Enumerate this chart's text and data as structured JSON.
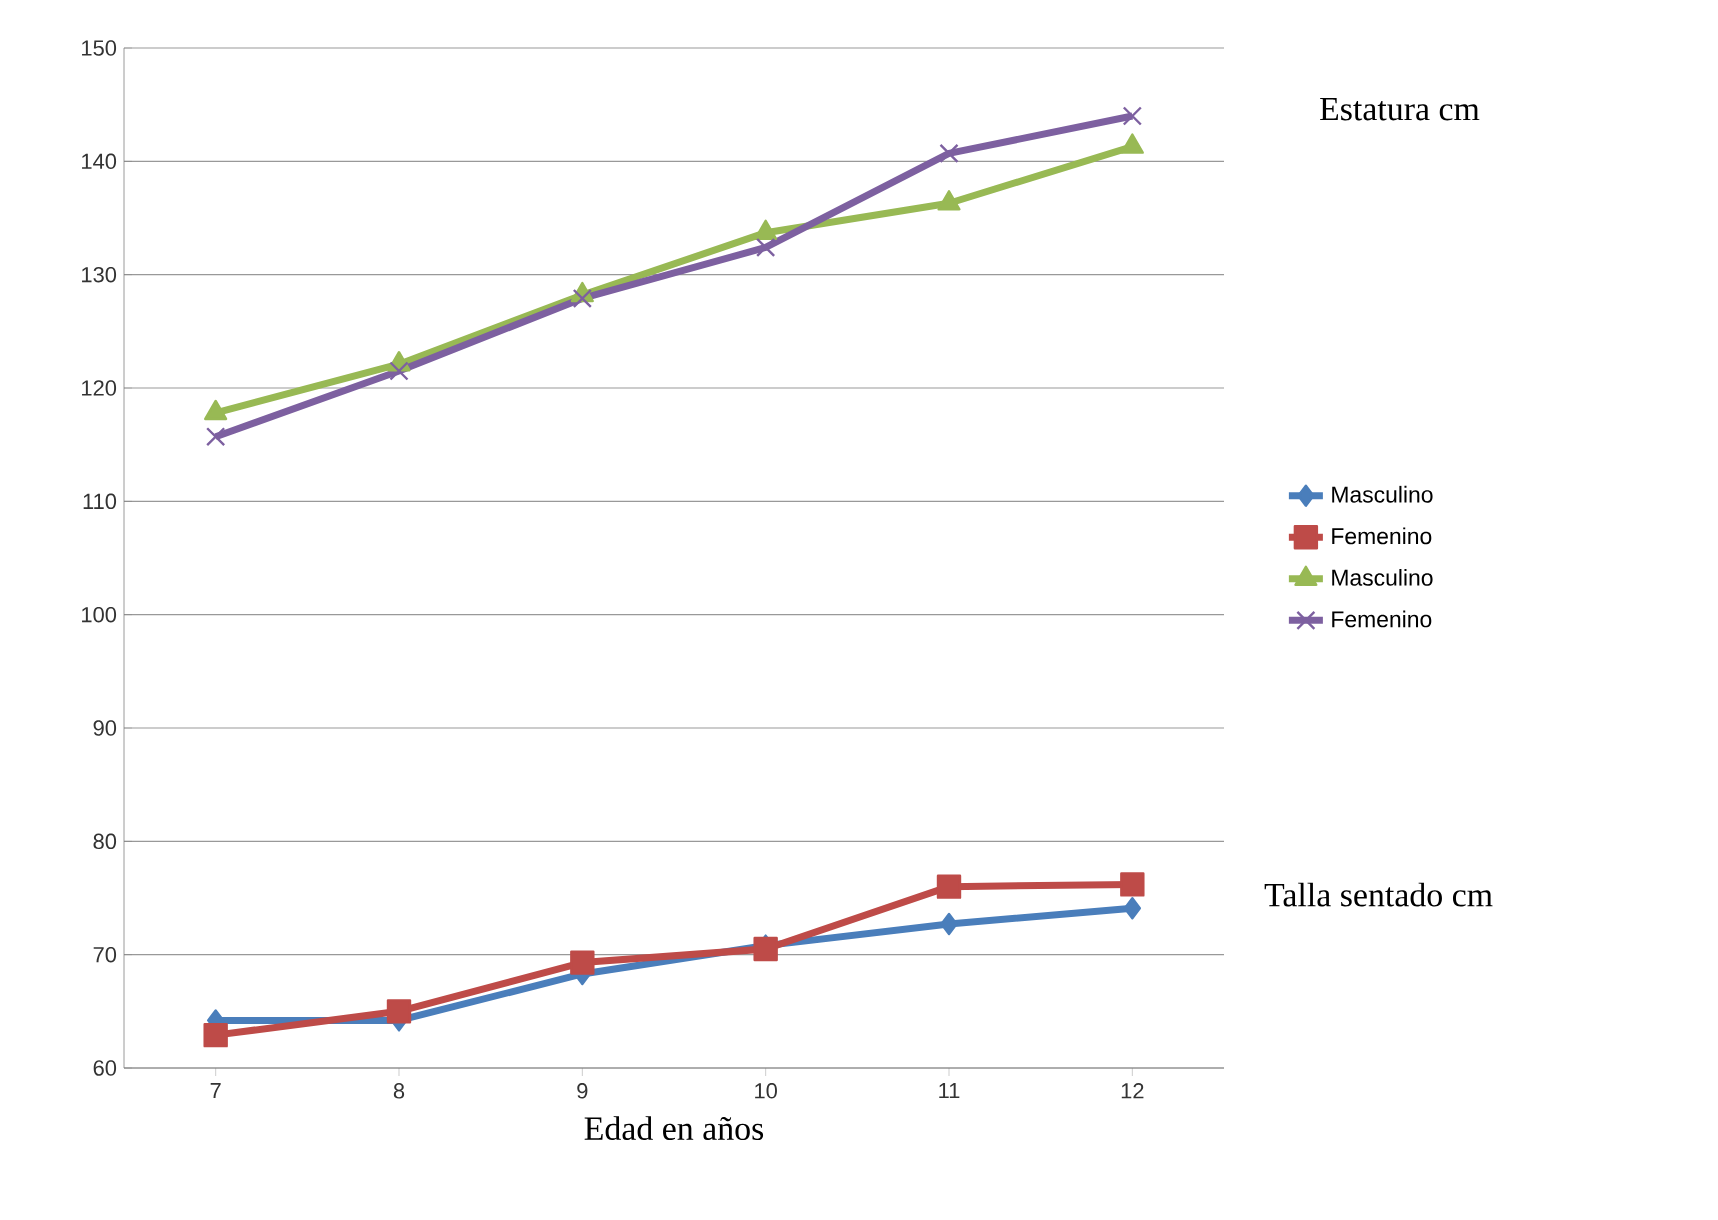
{
  "chart_data": {
    "type": "line",
    "xlabel": "Edad en años",
    "categories": [
      "7",
      "8",
      "9",
      "10",
      "11",
      "12"
    ],
    "series": [
      {
        "name": "Masculino",
        "color": "#4a7ebb",
        "marker": "diamond",
        "values": [
          64.2,
          64.2,
          68.3,
          70.8,
          72.7,
          74.1
        ]
      },
      {
        "name": "Femenino",
        "color": "#be4b48",
        "marker": "square",
        "values": [
          62.9,
          65.0,
          69.3,
          70.5,
          76.0,
          76.2
        ]
      },
      {
        "name": "Masculino",
        "color": "#98b954",
        "marker": "triangle",
        "values": [
          117.8,
          122.1,
          128.2,
          133.7,
          136.3,
          141.3
        ]
      },
      {
        "name": "Femenino",
        "color": "#7d60a0",
        "marker": "cross",
        "values": [
          115.7,
          121.5,
          127.9,
          132.4,
          140.7,
          144.0
        ]
      }
    ],
    "ylim": [
      60,
      150
    ],
    "yticks": [
      60,
      70,
      80,
      90,
      100,
      110,
      120,
      130,
      140,
      150
    ],
    "grid": "y",
    "legend": "right",
    "annotations": [
      "Estatura cm",
      "Talla sentado cm"
    ]
  }
}
